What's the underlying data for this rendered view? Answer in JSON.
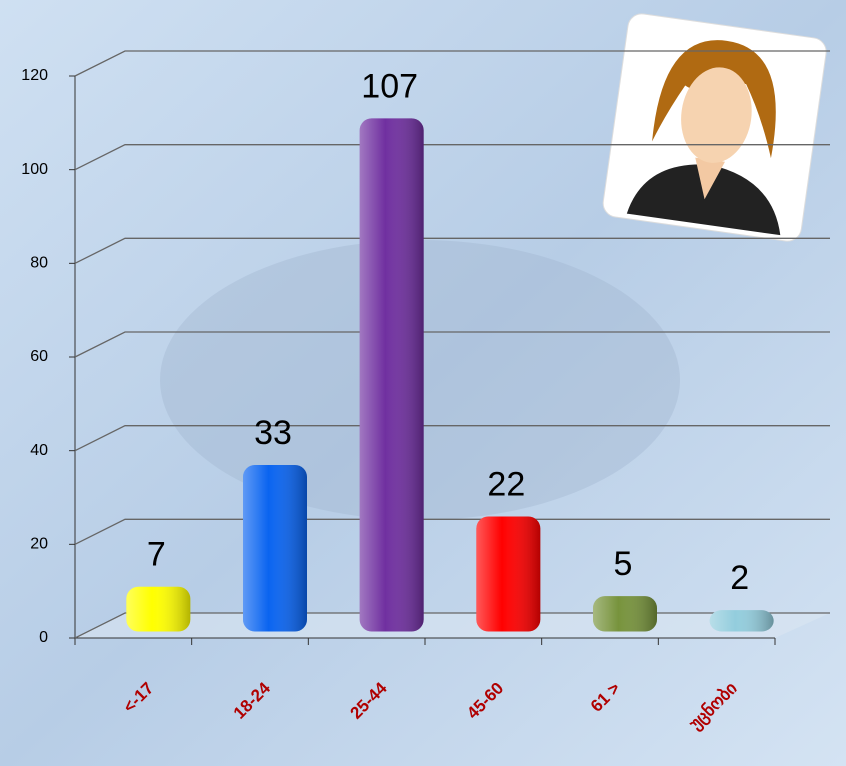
{
  "chart_data": {
    "type": "bar",
    "categories": [
      "<-17",
      "18-24",
      "25-44",
      "45-60",
      "61 >",
      "უცნობი"
    ],
    "values": [
      7,
      33,
      107,
      22,
      5,
      2
    ],
    "colors": [
      "#ffff00",
      "#0a64f0",
      "#7030a0",
      "#ff0000",
      "#77933c",
      "#93cddd"
    ],
    "ylim": [
      0,
      120
    ],
    "yticks": [
      0,
      20,
      40,
      60,
      80,
      100,
      120
    ],
    "grid": true
  }
}
